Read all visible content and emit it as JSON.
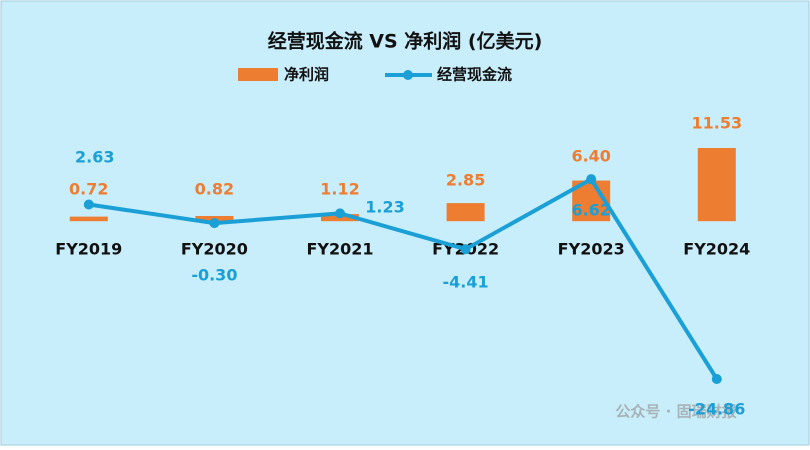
{
  "chart_data": {
    "type": "bar-line",
    "title": "经营现金流 VS 净利润 (亿美元)",
    "categories": [
      "FY2019",
      "FY2020",
      "FY2021",
      "FY2022",
      "FY2023",
      "FY2024"
    ],
    "series": [
      {
        "name": "净利润",
        "type": "bar",
        "color": "#ed7d31",
        "values": [
          0.72,
          0.82,
          1.12,
          2.85,
          6.4,
          11.53
        ],
        "value_labels": [
          "0.72",
          "0.82",
          "1.12",
          "2.85",
          "6.40",
          "11.53"
        ]
      },
      {
        "name": "经营现金流",
        "type": "line",
        "color": "#1a9fd6",
        "values": [
          2.63,
          -0.3,
          1.23,
          -4.41,
          6.62,
          -24.86
        ],
        "value_labels": [
          "2.63",
          "-0.30",
          "1.23",
          "-4.41",
          "6.62",
          "-24.86"
        ]
      }
    ],
    "watermark": "公众号 · 固瑞财报"
  }
}
